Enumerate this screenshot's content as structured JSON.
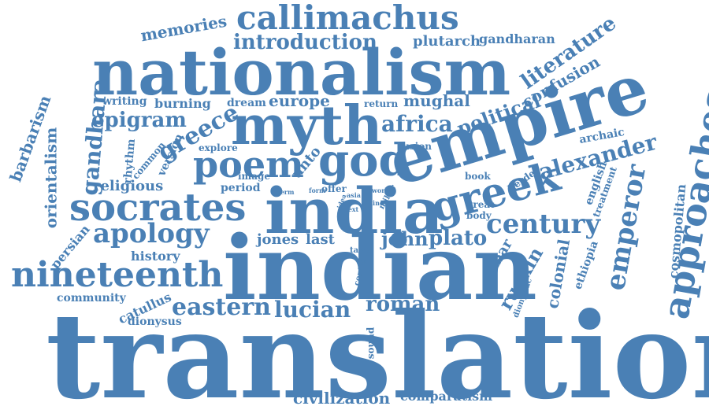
{
  "color": "#4a80b5",
  "words": {
    "translation": "translation",
    "indian": "indian",
    "nationalism": "nationalism",
    "empire": "empire",
    "india": "india",
    "myth": "myth",
    "approaches": "approaches",
    "callimachus": "callimachus",
    "god": "god",
    "greek": "greek",
    "socrates": "socrates",
    "nineteenth": "nineteenth",
    "poem": "poem",
    "century": "century",
    "emperor": "emperor",
    "apology": "apology",
    "alexander": "alexander",
    "introduction": "introduction",
    "literature": "literature",
    "epigram": "epigram",
    "greece": "greece",
    "africa": "africa",
    "eastern": "eastern",
    "lucian": "lucian",
    "roman": "roman",
    "plato": "plato",
    "john": "john",
    "jones": "jones",
    "last": "last",
    "political": "political",
    "confusion": "confusion",
    "mughal": "mughal",
    "europe": "europe",
    "memories": "memories",
    "plutarch": "plutarch",
    "gandharan": "gandharan",
    "gandhara": "gandhara",
    "barbarism": "barbarism",
    "orientalism": "orientalism",
    "unto": "unto",
    "religious": "religious",
    "history": "history",
    "persian": "persian",
    "community": "community",
    "catullus": "catullus",
    "dionysus": "dionysus",
    "civilization": "civilization",
    "comparatism": "comparatism",
    "ruskin": "ruskin",
    "colonial": "colonial",
    "akbar": "akbar",
    "ethiopia": "ethiopia",
    "cosmopolitan": "cosmopolitan",
    "english": "english",
    "treatment": "treatment",
    "archaic": "archaic",
    "burning": "burning",
    "writing": "writing",
    "dream": "dream",
    "return": "return",
    "version": "version",
    "rhythm": "rhythm",
    "common": "common",
    "explore": "explore",
    "fusion": "fusion",
    "period": "period",
    "image": "image",
    "book": "book",
    "herder": "herder",
    "offer": "offer",
    "form": "form",
    "term": "term",
    "work": "work",
    "miller": "miller",
    "line": "line",
    "text": "text",
    "asia": "asia",
    "idea": "idea",
    "great": "great",
    "body": "body",
    "take": "take",
    "context": "context",
    "sound": "sound",
    "dionysiac": "dionysiac"
  }
}
